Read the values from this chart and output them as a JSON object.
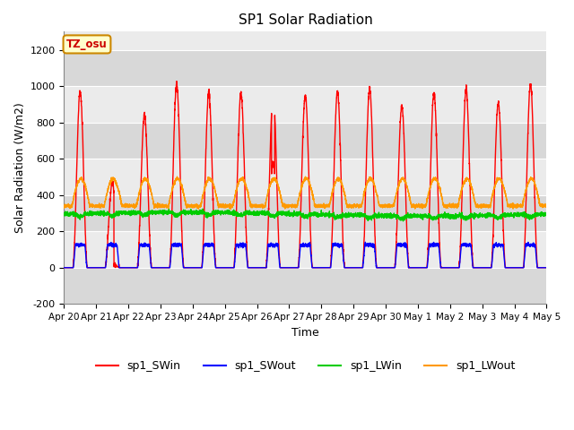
{
  "title": "SP1 Solar Radiation",
  "xlabel": "Time",
  "ylabel": "Solar Radiation (W/m2)",
  "ylim": [
    -200,
    1300
  ],
  "yticks": [
    -200,
    0,
    200,
    400,
    600,
    800,
    1000,
    1200
  ],
  "num_days": 15,
  "colors": {
    "sp1_SWin": "#ff0000",
    "sp1_SWout": "#0000ff",
    "sp1_LWin": "#00cc00",
    "sp1_LWout": "#ff9900"
  },
  "tz_label": "TZ_osu",
  "tz_box_facecolor": "#ffffcc",
  "tz_box_edgecolor": "#cc8800",
  "plot_bg_light": "#ebebeb",
  "plot_bg_dark": "#d8d8d8",
  "grid_color": "#ffffff",
  "sw_peaks": [
    970,
    470,
    840,
    1010,
    960,
    960,
    960,
    950,
    970,
    985,
    890,
    960,
    980,
    910,
    1010
  ],
  "sw_cloud_days": [
    1,
    7
  ],
  "figsize": [
    6.4,
    4.8
  ],
  "dpi": 100
}
